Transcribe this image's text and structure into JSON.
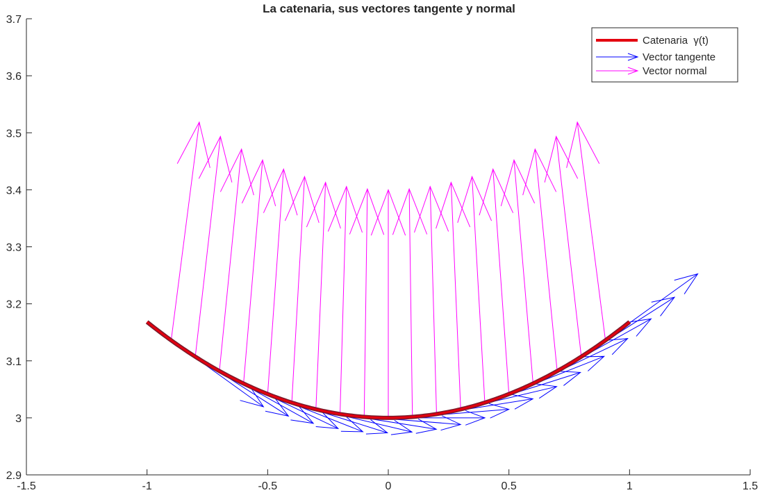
{
  "chart_data": {
    "type": "line",
    "title": "La catenaria, sus vectores tangente y normal",
    "xlabel": "",
    "ylabel": "",
    "xlim": [
      -1.5,
      1.5
    ],
    "ylim": [
      2.9,
      3.7
    ],
    "x_ticks": [
      "-1.5",
      "-1",
      "-0.5",
      "0",
      "0.5",
      "1",
      "1.5"
    ],
    "y_ticks": [
      "2.9",
      "3",
      "3.1",
      "3.2",
      "3.3",
      "3.4",
      "3.5",
      "3.6",
      "3.7"
    ],
    "grid": false,
    "legend_position": "top-right",
    "curve": {
      "a": 3,
      "t_range": [
        -1,
        1
      ]
    },
    "arrow_samples_t": [
      -0.9,
      -0.8,
      -0.7,
      -0.6,
      -0.5,
      -0.4,
      -0.3,
      -0.2,
      -0.1,
      0.0,
      0.1,
      0.2,
      0.3,
      0.4,
      0.5,
      0.6,
      0.7,
      0.8,
      0.9
    ],
    "vector_length": 0.4,
    "series": [
      {
        "name": "Catenaria  γ(t)",
        "kind": "curve",
        "color": "#e3000f",
        "shadow_color": "#7a1a2a"
      },
      {
        "name": "Vector tangente",
        "kind": "tangent-arrows",
        "color": "#0000ff"
      },
      {
        "name": "Vector normal",
        "kind": "normal-arrows",
        "color": "#ff00ff"
      }
    ]
  }
}
